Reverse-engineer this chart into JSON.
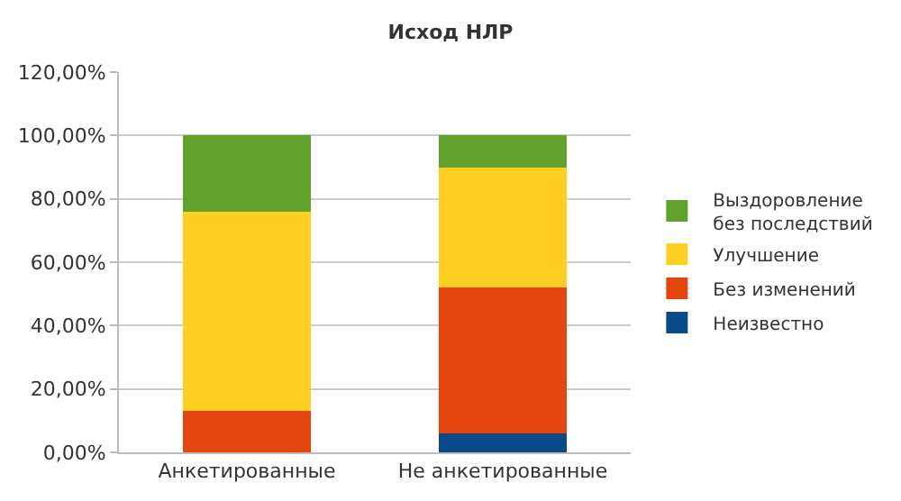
{
  "chart_data": {
    "type": "bar",
    "title": "Исход НЛР",
    "stacked": true,
    "categories": [
      "Анкетированные",
      "Не анкетированные"
    ],
    "series": [
      {
        "name": "Неизвестно",
        "color": "#0b4a8a",
        "values": [
          0,
          6
        ]
      },
      {
        "name": "Без изменений",
        "color": "#e5450f",
        "values": [
          13,
          46
        ]
      },
      {
        "name": "Улучшение",
        "color": "#fdd023",
        "values": [
          63,
          38
        ]
      },
      {
        "name": "Выздоровление\nбез последствий",
        "color": "#62a12b",
        "values": [
          24,
          10
        ]
      }
    ],
    "ylim": [
      0,
      120
    ],
    "yticks": [
      {
        "value": 0,
        "label": "0,00%"
      },
      {
        "value": 20,
        "label": "20,00%"
      },
      {
        "value": 40,
        "label": "40,00%"
      },
      {
        "value": 60,
        "label": "60,00%"
      },
      {
        "value": 80,
        "label": "80,00%"
      },
      {
        "value": 100,
        "label": "100,00%"
      },
      {
        "value": 120,
        "label": "120,00%"
      }
    ],
    "grid": "y",
    "legend": "right"
  }
}
